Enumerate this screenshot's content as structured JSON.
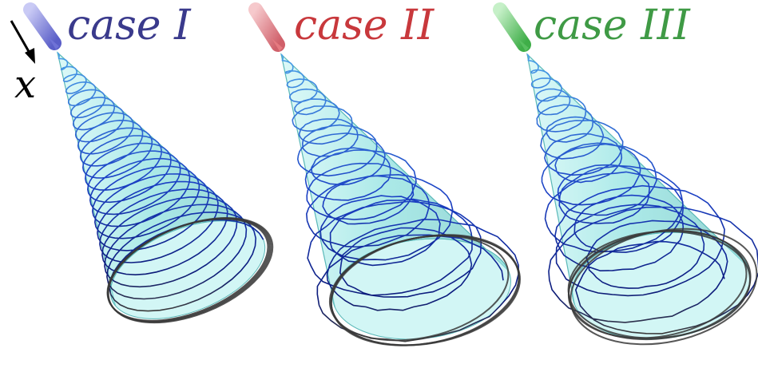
{
  "axis": {
    "label": "x"
  },
  "panels": [
    {
      "label": "case I",
      "color": "#3a3a8c",
      "nozzle_color": "#6f72d6",
      "regime": "regular"
    },
    {
      "label": "case II",
      "color": "#c8383c",
      "nozzle_color": "#e57a80",
      "regime": "perturbed"
    },
    {
      "label": "case III",
      "color": "#3f9a45",
      "nozzle_color": "#58c060",
      "regime": "perturbed"
    }
  ],
  "colors": {
    "cone_fill": "#8fe6e4",
    "cone_edge": "#5ab8b8",
    "coil_tip": "#4aa0e8",
    "coil_mid": "#1a3fc4",
    "coil_base": "#0b1a7a",
    "coil_outer": "#3a3a3a"
  }
}
